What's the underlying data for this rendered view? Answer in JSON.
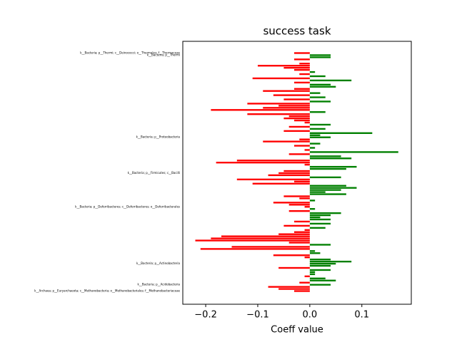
{
  "chart_data": {
    "type": "barh",
    "title": "success task",
    "xlabel": "Coeff value",
    "categories": [
      "k__Bacteria; p__Thermi; c__Deinococci; o__Thermales; f__Thermaceae",
      "k__Bacteria; p__Thermi",
      null,
      null,
      null,
      null,
      null,
      null,
      null,
      null,
      null,
      null,
      null,
      null,
      null,
      null,
      null,
      null,
      null,
      null,
      null,
      null,
      null,
      null,
      null,
      null,
      null,
      null,
      null,
      null,
      null,
      null,
      null,
      null,
      null,
      null,
      null,
      null,
      null,
      null,
      "k__Bacteria; p__Proteobacteria",
      null,
      null,
      null,
      null,
      null,
      null,
      null,
      null,
      null,
      null,
      null,
      null,
      null,
      null,
      null,
      null,
      "k__Bacteria; p__Firmicutes; c__Bacilli",
      null,
      null,
      null,
      null,
      null,
      null,
      null,
      null,
      null,
      null,
      null,
      null,
      null,
      null,
      null,
      "k__Bacteria; p__Deferribacteres; c__Deferribacteres; o__Deferribacterales",
      null,
      null,
      null,
      null,
      null,
      null,
      null,
      null,
      null,
      null,
      null,
      null,
      null,
      null,
      null,
      null,
      null,
      null,
      null,
      null,
      null,
      null,
      null,
      null,
      null,
      null,
      "k__Bacteria; p__Actinobacteria",
      null,
      null,
      null,
      null,
      null,
      null,
      null,
      null,
      null,
      "k__Bacteria; p__Acidobacteria",
      null,
      null,
      "k__Archaea; p__Euryarchaeota; c__Methanobacteria; o__Methanobacteriales; f__Methanobacteriaceae"
    ],
    "values": [
      -0.03,
      0.04,
      0.04,
      -0.03,
      0,
      -0.02,
      -0.1,
      -0.05,
      -0.03,
      0.01,
      -0.02,
      0.03,
      -0.11,
      0.08,
      -0.03,
      0.04,
      0.05,
      -0.03,
      -0.09,
      0.02,
      -0.07,
      0.03,
      -0.05,
      0.04,
      -0.12,
      -0.06,
      -0.09,
      -0.19,
      0.03,
      -0.12,
      -0.04,
      -0.05,
      -0.03,
      -0.01,
      0.04,
      -0.04,
      0.03,
      -0.05,
      0.12,
      0.02,
      0.04,
      -0.02,
      -0.09,
      0.02,
      -0.03,
      0.01,
      -0.01,
      0.17,
      -0.04,
      0.06,
      0.08,
      -0.14,
      -0.18,
      -0.01,
      0.09,
      0.07,
      -0.05,
      -0.06,
      -0.08,
      0.06,
      -0.14,
      -0.03,
      -0.11,
      0.07,
      0.09,
      0.06,
      0.03,
      0.07,
      -0.05,
      -0.02,
      0.01,
      -0.07,
      -0.04,
      -0.01,
      0.01,
      -0.04,
      0.06,
      0.04,
      0.02,
      0.04,
      -0.03,
      0.04,
      -0.05,
      0.03,
      -0.01,
      -0.03,
      -0.06,
      -0.17,
      -0.19,
      -0.22,
      -0.04,
      0.04,
      -0.15,
      -0.21,
      0.01,
      0.02,
      -0.07,
      -0.01,
      0.04,
      0.08,
      0.05,
      0.04,
      -0.06,
      0.04,
      0.01,
      0.01,
      -0.01,
      0.03,
      0.05,
      -0.02,
      0.04,
      -0.08,
      -0.06,
      -0.03
    ],
    "negative_color": "#ff0000",
    "positive_color": "#008000",
    "xlim": [
      -0.244,
      0.195
    ],
    "xticks": [
      {
        "value": -0.2,
        "label": "−0.2"
      },
      {
        "value": -0.1,
        "label": "−0.1"
      },
      {
        "value": 0,
        "label": "0.0"
      },
      0.1
    ]
  }
}
